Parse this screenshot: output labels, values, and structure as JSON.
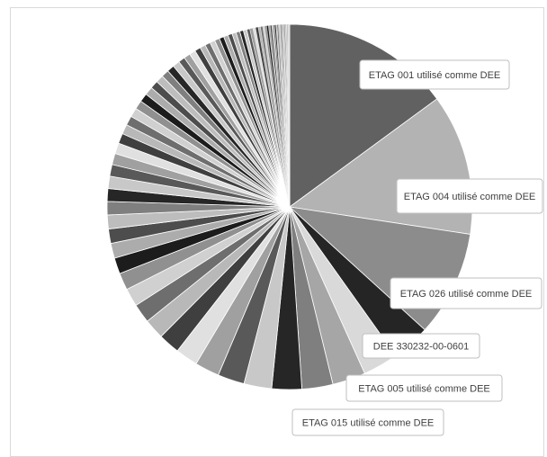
{
  "chart_data": {
    "type": "pie",
    "title": "",
    "labeled_slices": [
      {
        "label": "ETAG 001 utilisé comme DEE",
        "value": 15.8,
        "color": "#616161"
      },
      {
        "label": "ETAG 004 utilisé comme DEE",
        "value": 13.2,
        "color": "#b3b3b3"
      },
      {
        "label": "ETAG 026 utilisé comme DEE",
        "value": 9.9,
        "color": "#8c8c8c"
      },
      {
        "label": "DEE 330232-00-0601",
        "value": 3.6,
        "color": "#252525"
      },
      {
        "label": "ETAG 005 utilisé comme DEE",
        "value": 3.3,
        "color": "#d9d9d9"
      },
      {
        "label": "ETAG 015 utilisé comme DEE",
        "value": 3.1,
        "color": "#a6a6a6"
      }
    ],
    "other_slices": [
      2.9,
      2.8,
      2.6,
      2.5,
      2.3,
      2.1,
      2.0,
      1.9,
      1.8,
      1.7,
      1.6,
      1.5,
      1.4,
      1.35,
      1.3,
      1.25,
      1.2,
      1.15,
      1.1,
      1.05,
      1.0,
      0.95,
      0.9,
      0.88,
      0.85,
      0.82,
      0.8,
      0.78,
      0.75,
      0.72,
      0.7,
      0.68,
      0.65,
      0.62,
      0.6,
      0.58,
      0.55,
      0.52,
      0.5,
      0.48,
      0.46,
      0.44,
      0.42,
      0.4,
      0.38,
      0.36,
      0.34,
      0.32,
      0.3,
      0.28,
      0.26,
      0.24,
      0.22,
      0.2,
      0.19,
      0.18,
      0.17,
      0.16,
      0.15,
      0.14,
      0.13,
      0.12,
      0.11,
      0.1,
      0.1,
      0.09,
      0.09,
      0.08,
      0.08,
      0.07,
      0.07,
      0.06,
      0.06,
      0.05,
      0.05,
      0.05,
      0.04,
      0.04,
      0.04,
      0.03,
      0.03,
      0.03
    ],
    "palette": [
      "#7f7f7f",
      "#262626",
      "#c8c8c8",
      "#595959",
      "#a0a0a0",
      "#e0e0e0",
      "#3f3f3f",
      "#b8b8b8",
      "#6e6e6e",
      "#d0d0d0",
      "#909090",
      "#1c1c1c",
      "#acacac",
      "#4d4d4d",
      "#bdbdbd"
    ],
    "start_angle_deg": 0,
    "direction": "clockwise",
    "slice_stroke": "#ffffff",
    "legend": "none",
    "label_style": "callouts"
  }
}
